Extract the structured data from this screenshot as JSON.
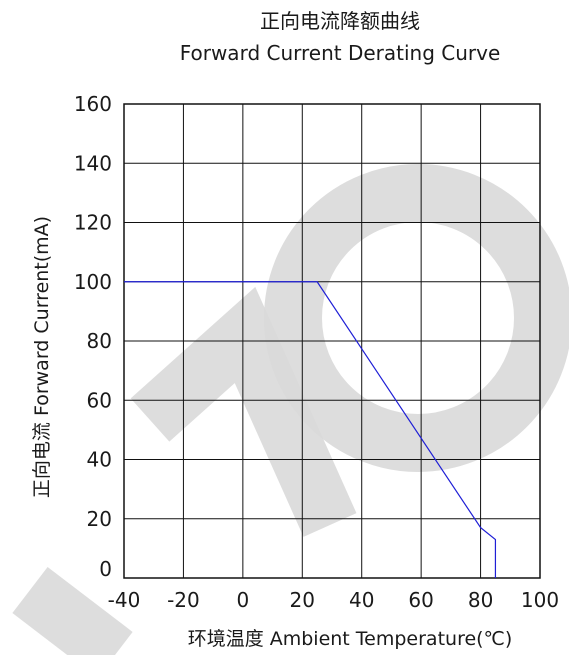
{
  "chart_data": {
    "type": "line",
    "title_cn": "正向电流降额曲线",
    "title_en": "Forward Current Derating Curve",
    "xlabel": "环境温度  Ambient Temperature(℃)",
    "ylabel": "正向电流  Forward Current(mA)",
    "xlim": [
      -40,
      100
    ],
    "ylim": [
      0,
      160
    ],
    "xticks": [
      -40,
      -20,
      0,
      20,
      40,
      60,
      80,
      100
    ],
    "yticks": [
      0,
      20,
      40,
      60,
      80,
      100,
      120,
      140,
      160
    ],
    "grid": true,
    "series": [
      {
        "color": "#1f1fd6",
        "x": [
          -40,
          25,
          80,
          85,
          85
        ],
        "y": [
          100,
          100,
          17,
          13,
          0
        ]
      }
    ]
  }
}
